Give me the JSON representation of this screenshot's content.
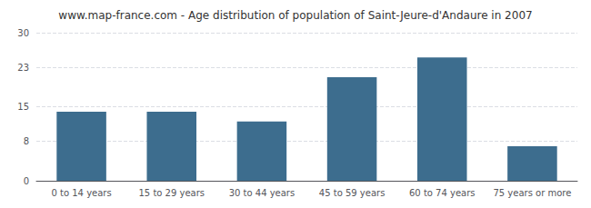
{
  "chart_data": {
    "type": "bar",
    "title": "www.map-france.com - Age distribution of population of Saint-Jeure-d'Andaure in 2007",
    "categories": [
      "0 to 14 years",
      "15 to 29 years",
      "30 to 44 years",
      "45 to 59 years",
      "60 to 74 years",
      "75 years or more"
    ],
    "values": [
      14,
      14,
      12,
      21,
      25,
      7
    ],
    "color": "#3d6d8e",
    "ylim": [
      0,
      30
    ],
    "yticks": [
      0,
      8,
      15,
      23,
      30
    ],
    "grid": true
  }
}
